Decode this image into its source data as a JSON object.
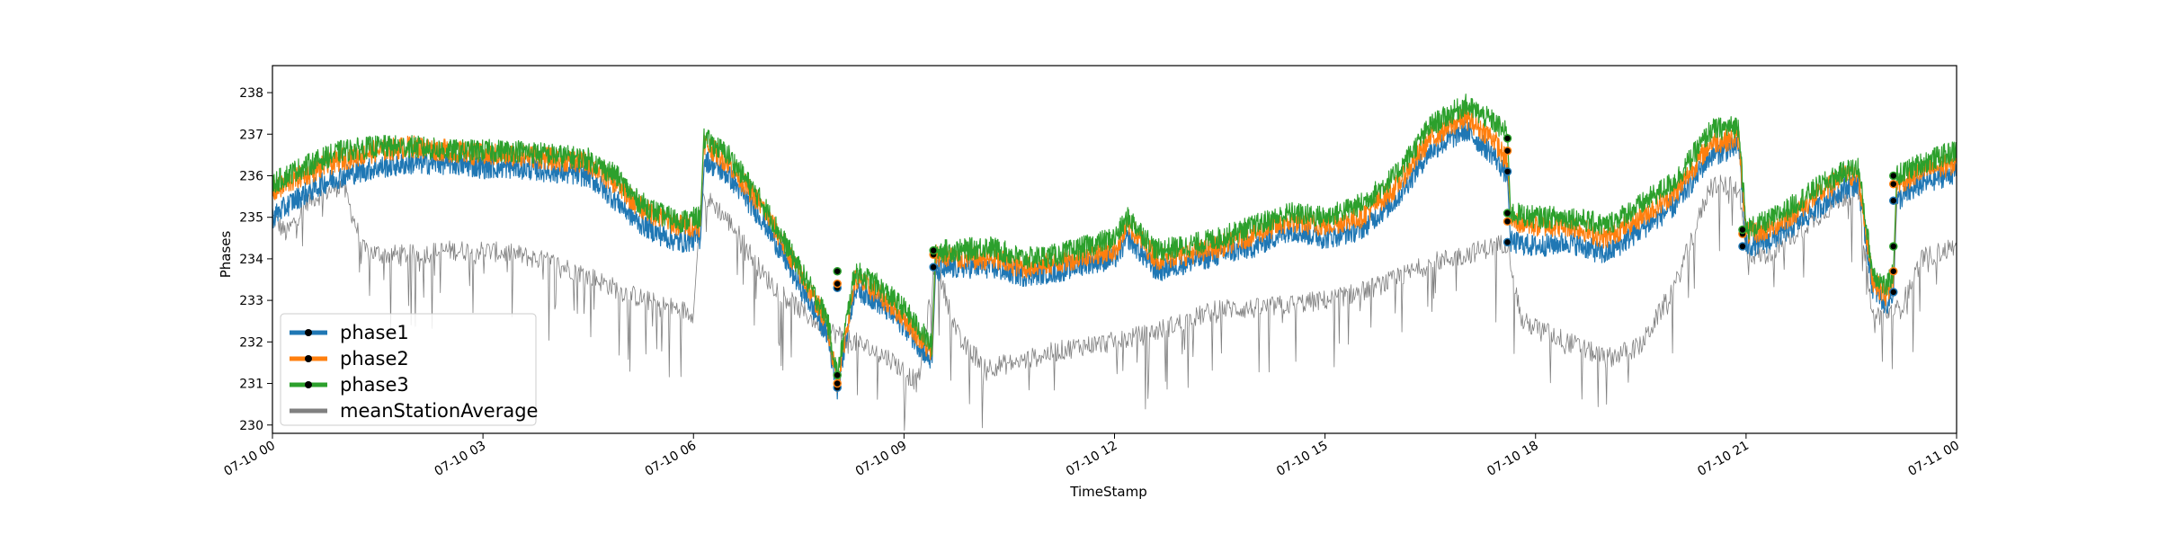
{
  "chart_data": {
    "type": "line",
    "title": "",
    "xlabel": "TimeStamp",
    "ylabel": "Phases",
    "xlim": [
      "07-10 00",
      "07-11 00"
    ],
    "ylim": [
      229.8,
      238.65
    ],
    "x_unit": "hours",
    "x_ticks": [
      0,
      3,
      6,
      9,
      12,
      15,
      18,
      21,
      24
    ],
    "x_tick_labels": [
      "07-10 00",
      "07-10 03",
      "07-10 06",
      "07-10 09",
      "07-10 12",
      "07-10 15",
      "07-10 18",
      "07-10 21",
      "07-11 00"
    ],
    "y_ticks": [
      230,
      231,
      232,
      233,
      234,
      235,
      236,
      237,
      238
    ],
    "y_tick_labels": [
      "230",
      "231",
      "232",
      "233",
      "234",
      "235",
      "236",
      "237",
      "238"
    ],
    "grid": false,
    "legend_position": "lower-left",
    "series": [
      {
        "name": "phase1",
        "color": "#1f77b4",
        "x": [
          0.0,
          0.3,
          0.7,
          1.0,
          1.5,
          2.0,
          2.5,
          3.0,
          3.5,
          4.0,
          4.5,
          4.9,
          5.2,
          5.5,
          5.8,
          6.1,
          6.15,
          6.5,
          7.0,
          7.5,
          7.9,
          8.05,
          8.3,
          8.6,
          9.0,
          9.4,
          9.45,
          9.8,
          10.2,
          10.7,
          11.2,
          11.6,
          12.0,
          12.2,
          12.6,
          13.0,
          13.5,
          14.0,
          14.5,
          15.0,
          15.5,
          16.0,
          16.5,
          17.0,
          17.4,
          17.6,
          17.65,
          18.0,
          18.5,
          19.0,
          19.5,
          20.0,
          20.5,
          20.9,
          21.0,
          21.3,
          21.6,
          22.0,
          22.4,
          22.6,
          22.8,
          23.0,
          23.1,
          23.15,
          23.5,
          24.0
        ],
        "y": [
          235.0,
          235.4,
          235.8,
          236.0,
          236.2,
          236.3,
          236.3,
          236.2,
          236.2,
          236.1,
          236.0,
          235.4,
          234.9,
          234.6,
          234.4,
          234.5,
          236.4,
          236.0,
          234.9,
          233.4,
          232.2,
          230.9,
          233.3,
          233.0,
          232.4,
          231.5,
          233.7,
          233.8,
          233.8,
          233.6,
          233.7,
          233.9,
          234.0,
          234.5,
          233.7,
          233.9,
          234.1,
          234.3,
          234.7,
          234.5,
          234.7,
          235.4,
          236.6,
          237.1,
          236.5,
          236.0,
          234.4,
          234.3,
          234.4,
          234.1,
          234.7,
          235.3,
          236.5,
          236.7,
          234.3,
          234.4,
          234.7,
          235.2,
          235.7,
          235.8,
          233.3,
          232.9,
          233.2,
          235.4,
          235.8,
          236.1
        ]
      },
      {
        "name": "phase2",
        "color": "#ff7f0e",
        "x": [
          0.0,
          0.3,
          0.7,
          1.0,
          1.5,
          2.0,
          2.5,
          3.0,
          3.5,
          4.0,
          4.5,
          4.9,
          5.2,
          5.5,
          5.8,
          6.1,
          6.15,
          6.5,
          7.0,
          7.5,
          7.9,
          8.05,
          8.3,
          8.6,
          9.0,
          9.4,
          9.45,
          9.8,
          10.2,
          10.7,
          11.2,
          11.6,
          12.0,
          12.2,
          12.6,
          13.0,
          13.5,
          14.0,
          14.5,
          15.0,
          15.5,
          16.0,
          16.5,
          17.0,
          17.4,
          17.6,
          17.65,
          18.0,
          18.5,
          19.0,
          19.5,
          20.0,
          20.5,
          20.9,
          21.0,
          21.3,
          21.6,
          22.0,
          22.4,
          22.6,
          22.8,
          23.0,
          23.1,
          23.15,
          23.5,
          24.0
        ],
        "y": [
          235.6,
          235.9,
          236.2,
          236.4,
          236.6,
          236.7,
          236.6,
          236.5,
          236.5,
          236.4,
          236.3,
          235.8,
          235.3,
          235.0,
          234.8,
          234.8,
          236.8,
          236.3,
          235.2,
          233.7,
          232.5,
          231.0,
          233.5,
          233.2,
          232.6,
          231.7,
          234.1,
          234.0,
          234.0,
          233.8,
          233.9,
          234.1,
          234.2,
          234.8,
          234.0,
          234.1,
          234.3,
          234.6,
          234.9,
          234.8,
          235.0,
          235.7,
          236.9,
          237.4,
          236.9,
          236.3,
          234.9,
          234.8,
          234.8,
          234.5,
          235.0,
          235.6,
          236.8,
          236.9,
          234.6,
          234.7,
          235.0,
          235.5,
          236.0,
          236.0,
          233.5,
          233.1,
          233.5,
          235.8,
          236.1,
          236.3
        ]
      },
      {
        "name": "phase3",
        "color": "#2ca02c",
        "x": [
          0.0,
          0.3,
          0.7,
          1.0,
          1.5,
          2.0,
          2.5,
          3.0,
          3.5,
          4.0,
          4.5,
          4.9,
          5.2,
          5.5,
          5.8,
          6.1,
          6.15,
          6.5,
          7.0,
          7.5,
          7.9,
          8.05,
          8.3,
          8.6,
          9.0,
          9.4,
          9.45,
          9.8,
          10.2,
          10.7,
          11.2,
          11.6,
          12.0,
          12.2,
          12.6,
          13.0,
          13.5,
          14.0,
          14.5,
          15.0,
          15.5,
          16.0,
          16.5,
          17.0,
          17.4,
          17.6,
          17.65,
          18.0,
          18.5,
          19.0,
          19.5,
          20.0,
          20.5,
          20.9,
          21.0,
          21.3,
          21.6,
          22.0,
          22.4,
          22.6,
          22.8,
          23.0,
          23.1,
          23.15,
          23.5,
          24.0
        ],
        "y": [
          235.8,
          236.1,
          236.4,
          236.6,
          236.7,
          236.7,
          236.6,
          236.6,
          236.6,
          236.5,
          236.4,
          236.0,
          235.4,
          235.1,
          234.9,
          235.0,
          236.9,
          236.5,
          235.3,
          233.8,
          232.6,
          231.2,
          233.7,
          233.4,
          232.8,
          231.9,
          234.2,
          234.2,
          234.3,
          234.0,
          234.1,
          234.3,
          234.5,
          235.0,
          234.2,
          234.3,
          234.5,
          234.8,
          235.1,
          235.0,
          235.3,
          236.0,
          237.2,
          237.7,
          237.3,
          237.0,
          235.1,
          235.0,
          235.0,
          234.8,
          235.3,
          235.9,
          237.1,
          237.2,
          234.7,
          234.9,
          235.2,
          235.7,
          236.1,
          236.2,
          233.7,
          233.3,
          233.7,
          236.0,
          236.3,
          236.6
        ]
      },
      {
        "name": "meanStationAverage",
        "color": "#808080",
        "x": [
          0.0,
          0.2,
          0.5,
          1.0,
          1.3,
          1.6,
          2.0,
          2.5,
          3.0,
          3.5,
          4.0,
          4.5,
          5.0,
          5.5,
          6.0,
          6.1,
          6.3,
          6.6,
          7.0,
          7.5,
          7.9,
          8.3,
          8.8,
          9.2,
          9.45,
          9.8,
          10.2,
          10.6,
          11.0,
          11.5,
          12.0,
          12.5,
          13.0,
          13.5,
          14.0,
          14.5,
          15.0,
          15.5,
          16.0,
          16.5,
          17.0,
          17.4,
          17.6,
          17.8,
          18.2,
          18.6,
          19.0,
          19.5,
          20.0,
          20.5,
          20.9,
          21.0,
          21.3,
          21.7,
          22.0,
          22.4,
          22.6,
          22.8,
          23.0,
          23.2,
          23.5,
          24.0
        ],
        "y": [
          235.0,
          234.6,
          235.4,
          235.8,
          234.2,
          234.1,
          234.1,
          234.2,
          234.2,
          234.1,
          233.9,
          233.6,
          233.2,
          232.9,
          232.7,
          235.5,
          235.3,
          234.7,
          233.6,
          232.8,
          232.3,
          232.0,
          231.6,
          231.0,
          233.9,
          232.0,
          231.4,
          231.5,
          231.7,
          231.9,
          232.0,
          232.2,
          232.5,
          232.8,
          232.8,
          232.9,
          233.0,
          233.2,
          233.5,
          233.9,
          234.1,
          234.3,
          234.4,
          232.5,
          232.2,
          231.9,
          231.6,
          231.9,
          233.4,
          235.8,
          235.7,
          234.1,
          234.1,
          234.6,
          235.0,
          235.5,
          235.6,
          232.6,
          232.7,
          232.8,
          234.0,
          234.3
        ]
      }
    ],
    "gap_markers": [
      {
        "x": 8.05,
        "y": [
          230.9,
          231.0,
          231.2,
          233.3,
          233.4,
          233.7
        ]
      },
      {
        "x": 9.42,
        "y": [
          233.8,
          234.1,
          234.2
        ]
      },
      {
        "x": 17.6,
        "y": [
          234.4,
          234.9,
          235.1,
          236.1,
          236.6,
          236.9
        ]
      },
      {
        "x": 20.95,
        "y": [
          234.3,
          234.6,
          234.7
        ]
      },
      {
        "x": 23.1,
        "y": [
          233.2,
          233.7,
          234.3,
          235.4,
          235.8,
          236.0
        ]
      }
    ],
    "legend": [
      "phase1",
      "phase2",
      "phase3",
      "meanStationAverage"
    ]
  }
}
